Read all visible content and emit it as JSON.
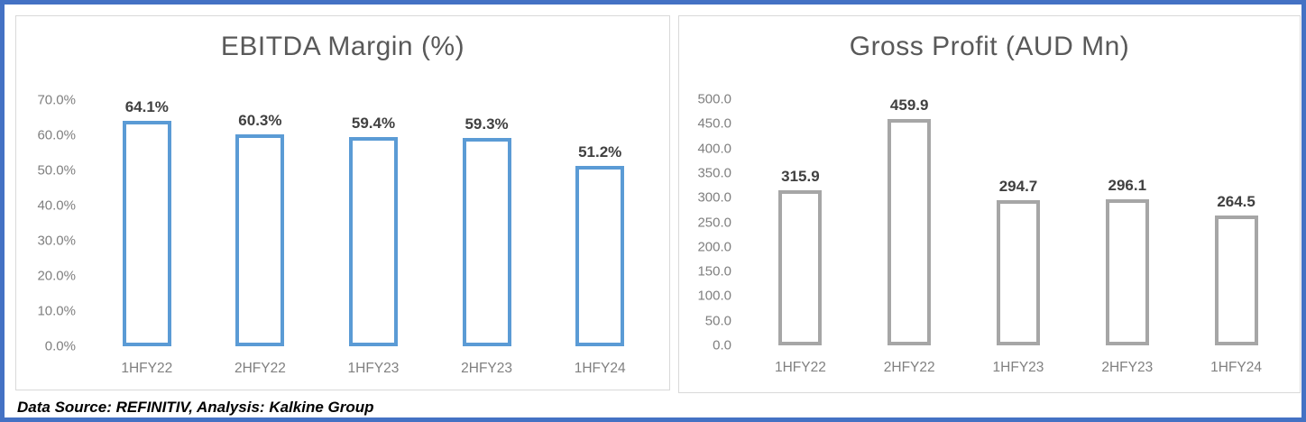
{
  "footer": {
    "text": "Data Source: REFINITIV, Analysis: Kalkine Group"
  },
  "colors": {
    "frame_border": "#4472C4",
    "panel_border": "#D9D9D9",
    "ebitda_bar_border": "#5B9BD5",
    "gross_profit_bar_border": "#A6A6A6",
    "title_text": "#595959",
    "axis_text": "#7f7f7f",
    "value_label_text": "#404040"
  },
  "chart_data": [
    {
      "type": "bar",
      "title": "EBITDA Margin (%)",
      "categories": [
        "1HFY22",
        "2HFY22",
        "1HFY23",
        "2HFY23",
        "1HFY24"
      ],
      "values": [
        64.1,
        60.3,
        59.4,
        59.3,
        51.2
      ],
      "value_labels": [
        "64.1%",
        "60.3%",
        "59.4%",
        "59.3%",
        "51.2%"
      ],
      "xlabel": "",
      "ylabel": "",
      "ylim": [
        0,
        70
      ],
      "yticks": [
        {
          "value": 70,
          "label": "70.0%"
        },
        {
          "value": 60,
          "label": "60.0%"
        },
        {
          "value": 50,
          "label": "50.0%"
        },
        {
          "value": 40,
          "label": "40.0%"
        },
        {
          "value": 30,
          "label": "30.0%"
        },
        {
          "value": 20,
          "label": "20.0%"
        },
        {
          "value": 10,
          "label": "10.0%"
        },
        {
          "value": 0,
          "label": "0.0%"
        }
      ],
      "bar_style": "hollow",
      "bar_border_color": "#5B9BD5",
      "grid": false,
      "legend": "none"
    },
    {
      "type": "bar",
      "title": "Gross Profit (AUD Mn)",
      "categories": [
        "1HFY22",
        "2HFY22",
        "1HFY23",
        "2HFY23",
        "1HFY24"
      ],
      "values": [
        315.9,
        459.9,
        294.7,
        296.1,
        264.5
      ],
      "value_labels": [
        "315.9",
        "459.9",
        "294.7",
        "296.1",
        "264.5"
      ],
      "xlabel": "",
      "ylabel": "",
      "ylim": [
        0,
        500
      ],
      "yticks": [
        {
          "value": 500,
          "label": "500.0"
        },
        {
          "value": 450,
          "label": "450.0"
        },
        {
          "value": 400,
          "label": "400.0"
        },
        {
          "value": 350,
          "label": "350.0"
        },
        {
          "value": 300,
          "label": "300.0"
        },
        {
          "value": 250,
          "label": "250.0"
        },
        {
          "value": 200,
          "label": "200.0"
        },
        {
          "value": 150,
          "label": "150.0"
        },
        {
          "value": 100,
          "label": "100.0"
        },
        {
          "value": 50,
          "label": "50.0"
        },
        {
          "value": 0,
          "label": "0.0"
        }
      ],
      "bar_style": "hollow",
      "bar_border_color": "#A6A6A6",
      "grid": false,
      "legend": "none"
    }
  ]
}
